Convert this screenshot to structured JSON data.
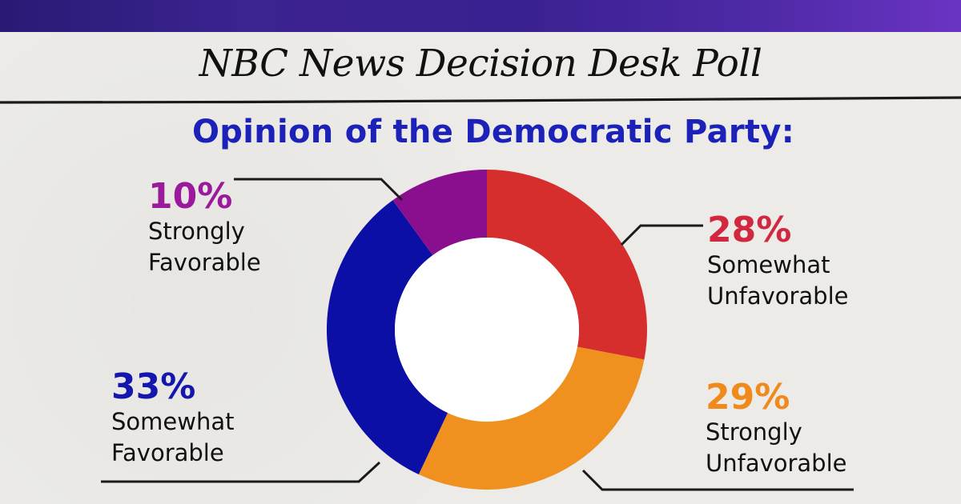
{
  "header": {
    "title": "NBC News Decision Desk Poll"
  },
  "colors": {
    "top_band_start": "#2a1a74",
    "top_band_end": "#6a34c2",
    "subtitle": "#1c22b8",
    "background": "#ecebe7"
  },
  "chart_data": {
    "type": "pie",
    "donut": true,
    "title": "Opinion of the Democratic Party:",
    "slices": [
      {
        "label_line1": "Somewhat",
        "label_line2": "Unfavorable",
        "value": 28,
        "display": "28%",
        "color": "#d62d2d",
        "pct_color": "#d1283f"
      },
      {
        "label_line1": "Strongly",
        "label_line2": "Unfavorable",
        "value": 29,
        "display": "29%",
        "color": "#f0901f",
        "pct_color": "#f08a1d"
      },
      {
        "label_line1": "Somewhat",
        "label_line2": "Favorable",
        "value": 33,
        "display": "33%",
        "color": "#0c0fa6",
        "pct_color": "#1417ad"
      },
      {
        "label_line1": "Strongly",
        "label_line2": "Favorable",
        "value": 10,
        "display": "10%",
        "color": "#8a0f8e",
        "pct_color": "#9b1a9c"
      }
    ]
  }
}
